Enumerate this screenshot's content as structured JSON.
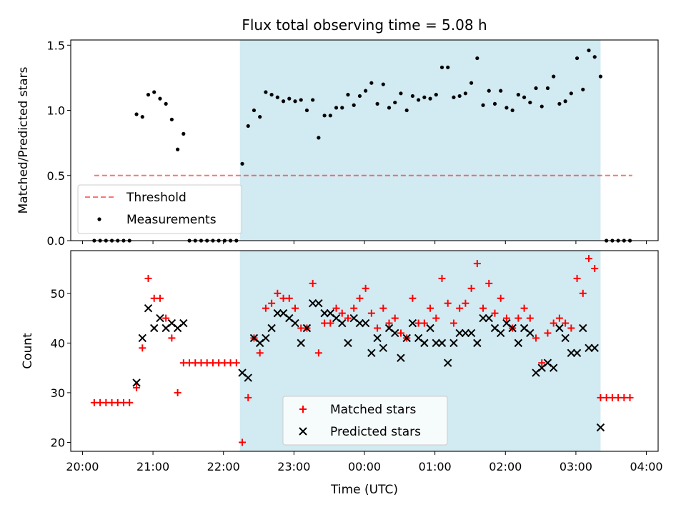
{
  "title": "Flux total observing time = 5.08 h",
  "colors": {
    "observing_band": "#add8e6",
    "threshold": "#ff0000",
    "measurements": "#000000",
    "matched": "#ff0000",
    "predicted": "#000000"
  },
  "chart_data": [
    {
      "type": "scatter",
      "ylabel": "Matched/Predicted stars",
      "ylim": [
        0,
        1.54
      ],
      "yticks": [
        0.0,
        0.5,
        1.0,
        1.5
      ],
      "ytick_labels": [
        "0.0",
        "0.5",
        "1.0",
        "1.5"
      ],
      "legend_position": "lower left",
      "observing_band": [
        "22:14",
        "03:21"
      ],
      "threshold": {
        "name": "Threshold",
        "value": 0.5,
        "x_range": [
          "20:10",
          "03:48"
        ],
        "style": "dashed"
      },
      "series": [
        {
          "name": "Measurements",
          "marker": "dot",
          "points": [
            [
              "20:10",
              0
            ],
            [
              "20:15",
              0
            ],
            [
              "20:20",
              0
            ],
            [
              "20:25",
              0
            ],
            [
              "20:30",
              0
            ],
            [
              "20:35",
              0
            ],
            [
              "20:40",
              0
            ],
            [
              "20:46",
              0.97
            ],
            [
              "20:51",
              0.95
            ],
            [
              "20:56",
              1.12
            ],
            [
              "21:01",
              1.14
            ],
            [
              "21:06",
              1.09
            ],
            [
              "21:11",
              1.05
            ],
            [
              "21:16",
              0.93
            ],
            [
              "21:21",
              0.7
            ],
            [
              "21:26",
              0.82
            ],
            [
              "21:31",
              0
            ],
            [
              "21:36",
              0
            ],
            [
              "21:41",
              0
            ],
            [
              "21:46",
              0
            ],
            [
              "21:51",
              0
            ],
            [
              "21:56",
              0
            ],
            [
              "22:01",
              0
            ],
            [
              "22:06",
              0
            ],
            [
              "22:11",
              0
            ],
            [
              "22:16",
              0.59
            ],
            [
              "22:21",
              0.88
            ],
            [
              "22:26",
              1.0
            ],
            [
              "22:31",
              0.95
            ],
            [
              "22:36",
              1.14
            ],
            [
              "22:41",
              1.12
            ],
            [
              "22:46",
              1.1
            ],
            [
              "22:51",
              1.07
            ],
            [
              "22:56",
              1.09
            ],
            [
              "23:01",
              1.07
            ],
            [
              "23:06",
              1.08
            ],
            [
              "23:11",
              1.0
            ],
            [
              "23:16",
              1.08
            ],
            [
              "23:21",
              0.79
            ],
            [
              "23:26",
              0.96
            ],
            [
              "23:31",
              0.96
            ],
            [
              "23:36",
              1.02
            ],
            [
              "23:41",
              1.02
            ],
            [
              "23:46",
              1.12
            ],
            [
              "23:51",
              1.04
            ],
            [
              "23:56",
              1.11
            ],
            [
              "00:01",
              1.15
            ],
            [
              "00:06",
              1.21
            ],
            [
              "00:11",
              1.05
            ],
            [
              "00:16",
              1.2
            ],
            [
              "00:21",
              1.02
            ],
            [
              "00:26",
              1.06
            ],
            [
              "00:31",
              1.13
            ],
            [
              "00:36",
              1.0
            ],
            [
              "00:41",
              1.11
            ],
            [
              "00:46",
              1.08
            ],
            [
              "00:51",
              1.1
            ],
            [
              "00:56",
              1.09
            ],
            [
              "01:01",
              1.12
            ],
            [
              "01:06",
              1.33
            ],
            [
              "01:11",
              1.33
            ],
            [
              "01:16",
              1.1
            ],
            [
              "01:21",
              1.11
            ],
            [
              "01:26",
              1.13
            ],
            [
              "01:31",
              1.21
            ],
            [
              "01:36",
              1.4
            ],
            [
              "01:41",
              1.04
            ],
            [
              "01:46",
              1.15
            ],
            [
              "01:51",
              1.05
            ],
            [
              "01:56",
              1.15
            ],
            [
              "02:01",
              1.02
            ],
            [
              "02:06",
              1.0
            ],
            [
              "02:11",
              1.12
            ],
            [
              "02:16",
              1.1
            ],
            [
              "02:21",
              1.06
            ],
            [
              "02:26",
              1.17
            ],
            [
              "02:31",
              1.03
            ],
            [
              "02:36",
              1.17
            ],
            [
              "02:41",
              1.26
            ],
            [
              "02:46",
              1.05
            ],
            [
              "02:51",
              1.07
            ],
            [
              "02:56",
              1.13
            ],
            [
              "03:01",
              1.4
            ],
            [
              "03:06",
              1.16
            ],
            [
              "03:11",
              1.46
            ],
            [
              "03:16",
              1.41
            ],
            [
              "03:21",
              1.26
            ],
            [
              "03:26",
              0
            ],
            [
              "03:31",
              0
            ],
            [
              "03:36",
              0
            ],
            [
              "03:41",
              0
            ],
            [
              "03:46",
              0
            ]
          ]
        }
      ]
    },
    {
      "type": "scatter",
      "ylabel": "Count",
      "xlabel": "Time (UTC)",
      "ylim": [
        18.2,
        58.6
      ],
      "yticks": [
        20,
        30,
        40,
        50
      ],
      "ytick_labels": [
        "20",
        "30",
        "40",
        "50"
      ],
      "xticks": [
        "20:00",
        "21:00",
        "22:00",
        "23:00",
        "00:00",
        "01:00",
        "02:00",
        "03:00",
        "04:00"
      ],
      "legend_position": "lower center",
      "observing_band": [
        "22:14",
        "03:21"
      ],
      "series": [
        {
          "name": "Matched stars",
          "marker": "plus",
          "points": [
            [
              "20:10",
              28
            ],
            [
              "20:15",
              28
            ],
            [
              "20:20",
              28
            ],
            [
              "20:25",
              28
            ],
            [
              "20:30",
              28
            ],
            [
              "20:35",
              28
            ],
            [
              "20:40",
              28
            ],
            [
              "20:46",
              31
            ],
            [
              "20:51",
              39
            ],
            [
              "20:56",
              53
            ],
            [
              "21:01",
              49
            ],
            [
              "21:06",
              49
            ],
            [
              "21:11",
              45
            ],
            [
              "21:16",
              41
            ],
            [
              "21:21",
              30
            ],
            [
              "21:26",
              36
            ],
            [
              "21:31",
              36
            ],
            [
              "21:36",
              36
            ],
            [
              "21:41",
              36
            ],
            [
              "21:46",
              36
            ],
            [
              "21:51",
              36
            ],
            [
              "21:56",
              36
            ],
            [
              "22:01",
              36
            ],
            [
              "22:06",
              36
            ],
            [
              "22:11",
              36
            ],
            [
              "22:16",
              20
            ],
            [
              "22:21",
              29
            ],
            [
              "22:26",
              41
            ],
            [
              "22:31",
              38
            ],
            [
              "22:36",
              47
            ],
            [
              "22:41",
              48
            ],
            [
              "22:46",
              50
            ],
            [
              "22:51",
              49
            ],
            [
              "22:56",
              49
            ],
            [
              "23:01",
              47
            ],
            [
              "23:06",
              43
            ],
            [
              "23:11",
              43
            ],
            [
              "23:16",
              52
            ],
            [
              "23:21",
              38
            ],
            [
              "23:26",
              44
            ],
            [
              "23:31",
              44
            ],
            [
              "23:36",
              47
            ],
            [
              "23:41",
              46
            ],
            [
              "23:46",
              45
            ],
            [
              "23:51",
              47
            ],
            [
              "23:56",
              49
            ],
            [
              "00:01",
              51
            ],
            [
              "00:06",
              46
            ],
            [
              "00:11",
              43
            ],
            [
              "00:16",
              47
            ],
            [
              "00:21",
              44
            ],
            [
              "00:26",
              45
            ],
            [
              "00:31",
              42
            ],
            [
              "00:36",
              41
            ],
            [
              "00:41",
              49
            ],
            [
              "00:46",
              44
            ],
            [
              "00:51",
              44
            ],
            [
              "00:56",
              47
            ],
            [
              "01:01",
              45
            ],
            [
              "01:06",
              53
            ],
            [
              "01:11",
              48
            ],
            [
              "01:16",
              44
            ],
            [
              "01:21",
              47
            ],
            [
              "01:26",
              48
            ],
            [
              "01:31",
              51
            ],
            [
              "01:36",
              56
            ],
            [
              "01:41",
              47
            ],
            [
              "01:46",
              52
            ],
            [
              "01:51",
              46
            ],
            [
              "01:56",
              49
            ],
            [
              "02:01",
              45
            ],
            [
              "02:06",
              43
            ],
            [
              "02:11",
              45
            ],
            [
              "02:16",
              47
            ],
            [
              "02:21",
              45
            ],
            [
              "02:26",
              41
            ],
            [
              "02:31",
              36
            ],
            [
              "02:36",
              42
            ],
            [
              "02:41",
              44
            ],
            [
              "02:46",
              45
            ],
            [
              "02:51",
              44
            ],
            [
              "02:56",
              43
            ],
            [
              "03:01",
              53
            ],
            [
              "03:06",
              50
            ],
            [
              "03:11",
              57
            ],
            [
              "03:16",
              55
            ],
            [
              "03:21",
              29
            ],
            [
              "03:26",
              29
            ],
            [
              "03:31",
              29
            ],
            [
              "03:36",
              29
            ],
            [
              "03:41",
              29
            ],
            [
              "03:46",
              29
            ]
          ]
        },
        {
          "name": "Predicted stars",
          "marker": "x",
          "points": [
            [
              "20:46",
              32
            ],
            [
              "20:51",
              41
            ],
            [
              "20:56",
              47
            ],
            [
              "21:01",
              43
            ],
            [
              "21:06",
              45
            ],
            [
              "21:11",
              43
            ],
            [
              "21:16",
              44
            ],
            [
              "21:21",
              43
            ],
            [
              "21:26",
              44
            ],
            [
              "22:16",
              34
            ],
            [
              "22:21",
              33
            ],
            [
              "22:26",
              41
            ],
            [
              "22:31",
              40
            ],
            [
              "22:36",
              41
            ],
            [
              "22:41",
              43
            ],
            [
              "22:46",
              46
            ],
            [
              "22:51",
              46
            ],
            [
              "22:56",
              45
            ],
            [
              "23:01",
              44
            ],
            [
              "23:06",
              40
            ],
            [
              "23:11",
              43
            ],
            [
              "23:16",
              48
            ],
            [
              "23:21",
              48
            ],
            [
              "23:26",
              46
            ],
            [
              "23:31",
              46
            ],
            [
              "23:36",
              45
            ],
            [
              "23:41",
              44
            ],
            [
              "23:46",
              40
            ],
            [
              "23:51",
              45
            ],
            [
              "23:56",
              44
            ],
            [
              "00:01",
              44
            ],
            [
              "00:06",
              38
            ],
            [
              "00:11",
              41
            ],
            [
              "00:16",
              39
            ],
            [
              "00:21",
              43
            ],
            [
              "00:26",
              42
            ],
            [
              "00:31",
              37
            ],
            [
              "00:36",
              41
            ],
            [
              "00:41",
              44
            ],
            [
              "00:46",
              41
            ],
            [
              "00:51",
              40
            ],
            [
              "00:56",
              43
            ],
            [
              "01:01",
              40
            ],
            [
              "01:06",
              40
            ],
            [
              "01:11",
              36
            ],
            [
              "01:16",
              40
            ],
            [
              "01:21",
              42
            ],
            [
              "01:26",
              42
            ],
            [
              "01:31",
              42
            ],
            [
              "01:36",
              40
            ],
            [
              "01:41",
              45
            ],
            [
              "01:46",
              45
            ],
            [
              "01:51",
              43
            ],
            [
              "01:56",
              42
            ],
            [
              "02:01",
              44
            ],
            [
              "02:06",
              43
            ],
            [
              "02:11",
              40
            ],
            [
              "02:16",
              43
            ],
            [
              "02:21",
              42
            ],
            [
              "02:26",
              34
            ],
            [
              "02:31",
              35
            ],
            [
              "02:36",
              36
            ],
            [
              "02:41",
              35
            ],
            [
              "02:46",
              43
            ],
            [
              "02:51",
              41
            ],
            [
              "02:56",
              38
            ],
            [
              "03:01",
              38
            ],
            [
              "03:06",
              43
            ],
            [
              "03:11",
              39
            ],
            [
              "03:16",
              39
            ],
            [
              "03:21",
              23
            ]
          ]
        }
      ]
    }
  ]
}
